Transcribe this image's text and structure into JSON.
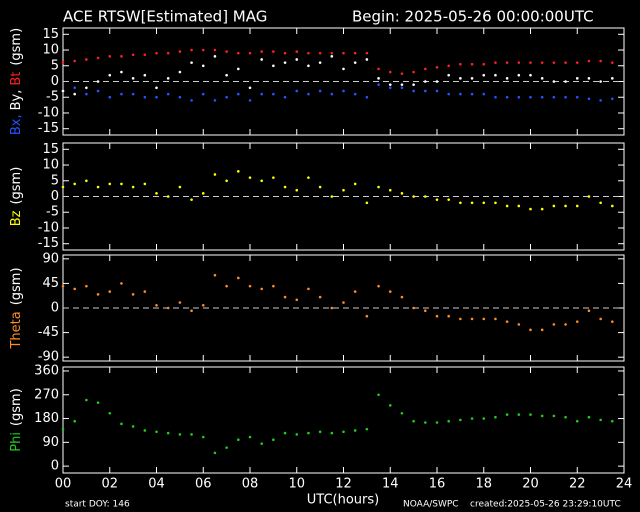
{
  "header": {
    "title": "ACE RTSW[Estimated] MAG",
    "begin": "Begin: 2025-05-26 00:00:00UTC"
  },
  "footer": {
    "start_doy": "start DOY:  146",
    "source": "NOAA/SWPC",
    "created": "created:2025-05-26 23:29:10UTC"
  },
  "chart_data": [
    {
      "type": "scatter",
      "ylabel": "(gsm)",
      "zero_line": true,
      "show_xticklabels": false,
      "xlim": [
        0,
        24
      ],
      "xticks": [
        {
          "value": 0,
          "label": "00"
        },
        {
          "value": 2,
          "label": "02"
        },
        {
          "value": 4,
          "label": "04"
        },
        {
          "value": 6,
          "label": "06"
        },
        {
          "value": 8,
          "label": "08"
        },
        {
          "value": 10,
          "label": "10"
        },
        {
          "value": 12,
          "label": "12"
        },
        {
          "value": 14,
          "label": "14"
        },
        {
          "value": 16,
          "label": "16"
        },
        {
          "value": 18,
          "label": "18"
        },
        {
          "value": 20,
          "label": "20"
        },
        {
          "value": 22,
          "label": "22"
        },
        {
          "value": 24,
          "label": "24"
        }
      ],
      "ylim": [
        -17,
        17
      ],
      "yticks": [
        15,
        10,
        5,
        0,
        -5,
        -10,
        -15
      ],
      "x": [
        0,
        0.5,
        1,
        1.5,
        2,
        2.5,
        3,
        3.5,
        4,
        4.5,
        5,
        5.5,
        6,
        6.5,
        7,
        7.5,
        8,
        8.5,
        9,
        9.5,
        10,
        10.5,
        11,
        11.5,
        12,
        12.5,
        13,
        13.5,
        14,
        14.5,
        15,
        15.5,
        16,
        16.5,
        17,
        17.5,
        18,
        18.5,
        19,
        19.5,
        20,
        20.5,
        21,
        21.5,
        22,
        22.5,
        23,
        23.5
      ],
      "series": [
        {
          "name": "Bx,",
          "color": "#2255ff",
          "values": [
            -3,
            -2,
            -4,
            -3,
            -5,
            -4,
            -4,
            -5,
            -5,
            -4,
            -5,
            -6,
            -4,
            -6,
            -5,
            -4,
            -6,
            -4,
            -4,
            -5,
            -3,
            -4,
            -3,
            -4,
            -3,
            -4,
            -5,
            -1,
            -2,
            -2,
            -3,
            -3,
            -3,
            -4,
            -4,
            -4,
            -4,
            -5,
            -5,
            -5,
            -5,
            -5,
            -5,
            -5,
            -5,
            -5.5,
            -6,
            -5.5
          ]
        },
        {
          "name": "By,",
          "color": "#ffffff",
          "values": [
            -3,
            -4,
            -2,
            0,
            2,
            3,
            1,
            2,
            -2,
            1,
            3,
            6,
            5,
            8,
            2,
            4,
            -2,
            7,
            5,
            6,
            7,
            5,
            6,
            8,
            4,
            6,
            7,
            1,
            -1,
            -1,
            -1,
            0,
            0,
            2,
            1,
            1,
            2,
            2,
            1,
            2,
            2,
            1,
            0,
            0,
            1,
            1,
            0,
            1
          ]
        },
        {
          "name": "Bt",
          "color": "#ff2020",
          "values": [
            6,
            6.5,
            7,
            7.5,
            8,
            8,
            8.5,
            8.5,
            9,
            9,
            9.5,
            10,
            10,
            10,
            9.5,
            9,
            9,
            9.5,
            9.5,
            9,
            9.5,
            9,
            9,
            9,
            9,
            9,
            9,
            4,
            3,
            2.5,
            3,
            4,
            4.5,
            5,
            5.5,
            5.5,
            5.5,
            6,
            6,
            6,
            6,
            6,
            6,
            6,
            6,
            6.5,
            6.5,
            6
          ]
        }
      ]
    },
    {
      "type": "scatter",
      "ylabel": "(gsm)",
      "zero_line": true,
      "show_xticklabels": false,
      "xlim": [
        0,
        24
      ],
      "xticks": [
        {
          "value": 0,
          "label": "00"
        },
        {
          "value": 2,
          "label": "02"
        },
        {
          "value": 4,
          "label": "04"
        },
        {
          "value": 6,
          "label": "06"
        },
        {
          "value": 8,
          "label": "08"
        },
        {
          "value": 10,
          "label": "10"
        },
        {
          "value": 12,
          "label": "12"
        },
        {
          "value": 14,
          "label": "14"
        },
        {
          "value": 16,
          "label": "16"
        },
        {
          "value": 18,
          "label": "18"
        },
        {
          "value": 20,
          "label": "20"
        },
        {
          "value": 22,
          "label": "22"
        },
        {
          "value": 24,
          "label": "24"
        }
      ],
      "ylim": [
        -17,
        17
      ],
      "yticks": [
        15,
        10,
        5,
        0,
        -5,
        -10,
        -15
      ],
      "x": [
        0,
        0.5,
        1,
        1.5,
        2,
        2.5,
        3,
        3.5,
        4,
        4.5,
        5,
        5.5,
        6,
        6.5,
        7,
        7.5,
        8,
        8.5,
        9,
        9.5,
        10,
        10.5,
        11,
        11.5,
        12,
        12.5,
        13,
        13.5,
        14,
        14.5,
        15,
        15.5,
        16,
        16.5,
        17,
        17.5,
        18,
        18.5,
        19,
        19.5,
        20,
        20.5,
        21,
        21.5,
        22,
        22.5,
        23,
        23.5
      ],
      "series": [
        {
          "name": "Bz",
          "color": "#ffff00",
          "values": [
            3,
            4,
            5,
            3,
            4,
            4,
            3,
            4,
            1,
            0,
            3,
            -1,
            1,
            7,
            5,
            8,
            6,
            5,
            6,
            3,
            2,
            6,
            3,
            0,
            2,
            4,
            -2,
            3,
            2,
            1,
            0,
            0,
            -1,
            -1,
            -2,
            -2,
            -2,
            -2,
            -3,
            -3,
            -4,
            -4,
            -3,
            -3,
            -3,
            0,
            -2,
            -3
          ]
        }
      ]
    },
    {
      "type": "scatter",
      "ylabel": "(gsm)",
      "zero_line": true,
      "show_xticklabels": false,
      "xlim": [
        0,
        24
      ],
      "xticks": [
        {
          "value": 0,
          "label": "00"
        },
        {
          "value": 2,
          "label": "02"
        },
        {
          "value": 4,
          "label": "04"
        },
        {
          "value": 6,
          "label": "06"
        },
        {
          "value": 8,
          "label": "08"
        },
        {
          "value": 10,
          "label": "10"
        },
        {
          "value": 12,
          "label": "12"
        },
        {
          "value": 14,
          "label": "14"
        },
        {
          "value": 16,
          "label": "16"
        },
        {
          "value": 18,
          "label": "18"
        },
        {
          "value": 20,
          "label": "20"
        },
        {
          "value": 22,
          "label": "22"
        },
        {
          "value": 24,
          "label": "24"
        }
      ],
      "ylim": [
        -97,
        97
      ],
      "yticks": [
        90,
        45,
        0,
        -45,
        -90
      ],
      "x": [
        0,
        0.5,
        1,
        1.5,
        2,
        2.5,
        3,
        3.5,
        4,
        4.5,
        5,
        5.5,
        6,
        6.5,
        7,
        7.5,
        8,
        8.5,
        9,
        9.5,
        10,
        10.5,
        11,
        11.5,
        12,
        12.5,
        13,
        13.5,
        14,
        14.5,
        15,
        15.5,
        16,
        16.5,
        17,
        17.5,
        18,
        18.5,
        19,
        19.5,
        20,
        20.5,
        21,
        21.5,
        22,
        22.5,
        23,
        23.5
      ],
      "series": [
        {
          "name": "Theta",
          "color": "#ff8c28",
          "values": [
            40,
            35,
            40,
            25,
            30,
            45,
            25,
            30,
            5,
            0,
            10,
            -5,
            5,
            60,
            40,
            55,
            40,
            35,
            40,
            20,
            15,
            35,
            20,
            0,
            10,
            30,
            -15,
            40,
            30,
            20,
            0,
            -5,
            -15,
            -15,
            -20,
            -20,
            -20,
            -20,
            -25,
            -30,
            -40,
            -40,
            -30,
            -30,
            -25,
            -5,
            -20,
            -25
          ]
        }
      ]
    },
    {
      "type": "scatter",
      "ylabel": "(gsm)",
      "zero_line": false,
      "show_xticklabels": true,
      "xlabel": "UTC(hours)",
      "xlim": [
        0,
        24
      ],
      "xticks": [
        {
          "value": 0,
          "label": "00"
        },
        {
          "value": 2,
          "label": "02"
        },
        {
          "value": 4,
          "label": "04"
        },
        {
          "value": 6,
          "label": "06"
        },
        {
          "value": 8,
          "label": "08"
        },
        {
          "value": 10,
          "label": "10"
        },
        {
          "value": 12,
          "label": "12"
        },
        {
          "value": 14,
          "label": "14"
        },
        {
          "value": 16,
          "label": "16"
        },
        {
          "value": 18,
          "label": "18"
        },
        {
          "value": 20,
          "label": "20"
        },
        {
          "value": 22,
          "label": "22"
        },
        {
          "value": 24,
          "label": "24"
        }
      ],
      "ylim": [
        -26,
        375
      ],
      "yticks": [
        360,
        270,
        180,
        90,
        0
      ],
      "x": [
        0,
        0.5,
        1,
        1.5,
        2,
        2.5,
        3,
        3.5,
        4,
        4.5,
        5,
        5.5,
        6,
        6.5,
        7,
        7.5,
        8,
        8.5,
        9,
        9.5,
        10,
        10.5,
        11,
        11.5,
        12,
        12.5,
        13,
        13.5,
        14,
        14.5,
        15,
        15.5,
        16,
        16.5,
        17,
        17.5,
        18,
        18.5,
        19,
        19.5,
        20,
        20.5,
        21,
        21.5,
        22,
        22.5,
        23,
        23.5
      ],
      "series": [
        {
          "name": "Phi",
          "color": "#22cc22",
          "values": [
            140,
            170,
            250,
            240,
            200,
            160,
            150,
            135,
            130,
            125,
            120,
            120,
            110,
            50,
            70,
            100,
            110,
            85,
            100,
            125,
            120,
            125,
            130,
            125,
            130,
            135,
            140,
            270,
            230,
            200,
            170,
            165,
            165,
            170,
            175,
            180,
            180,
            185,
            195,
            195,
            195,
            190,
            190,
            185,
            170,
            185,
            175,
            170
          ]
        }
      ]
    }
  ]
}
